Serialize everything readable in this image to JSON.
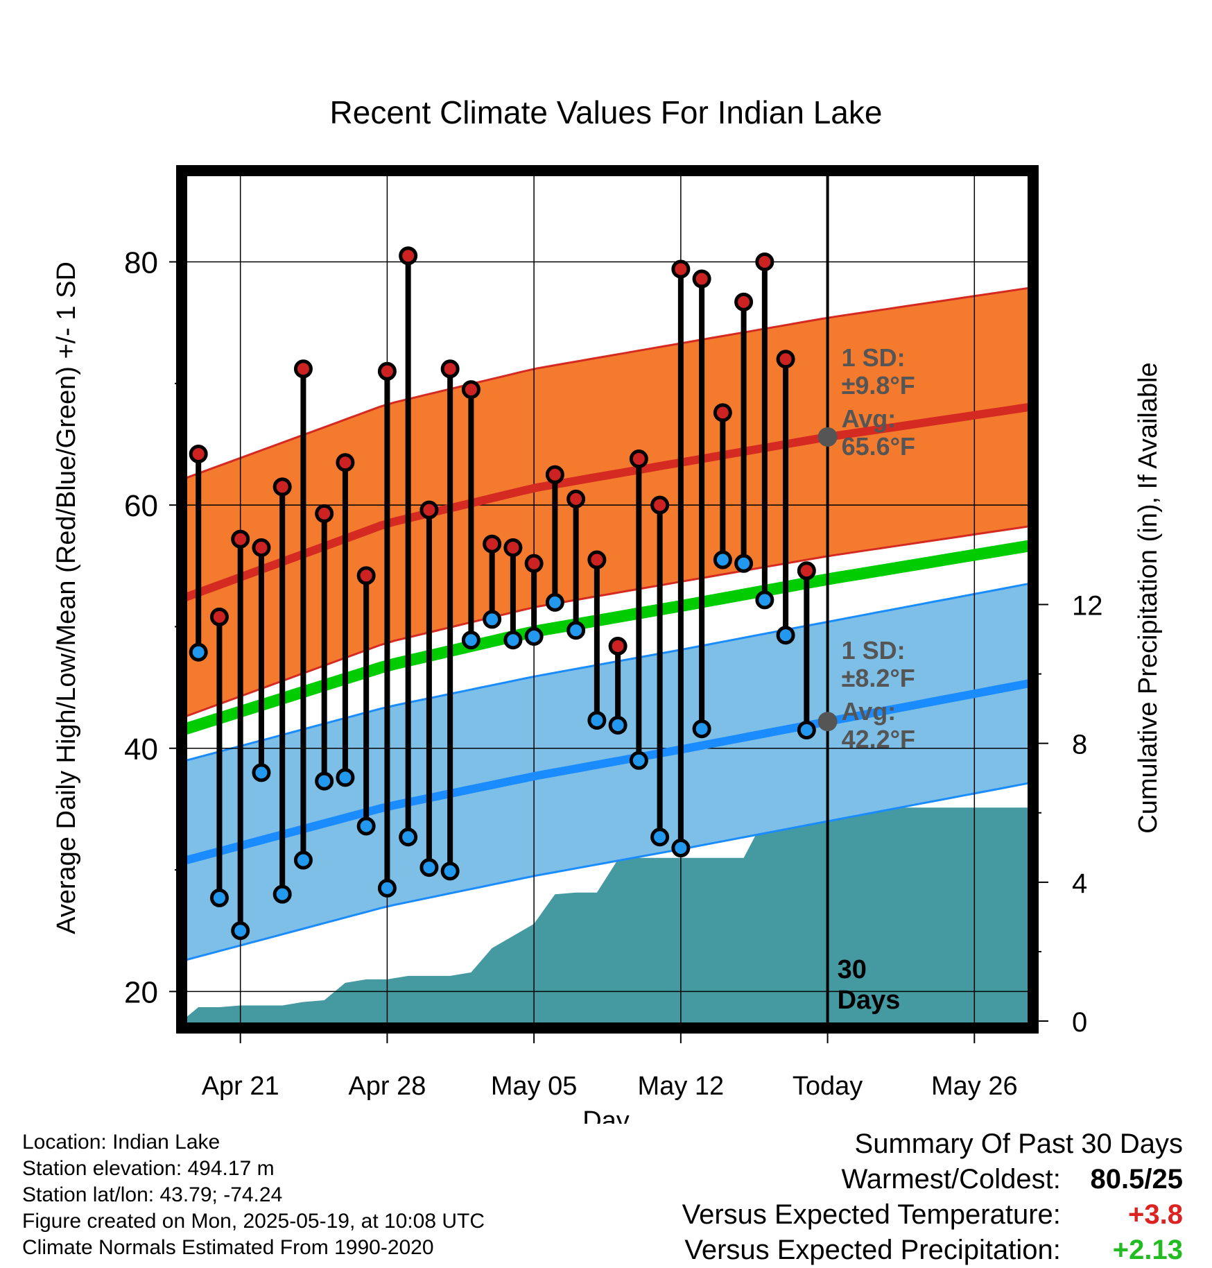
{
  "chart_data": {
    "type": "range-bar",
    "title": "Recent Climate Values For Indian Lake",
    "xlabel": "Day",
    "ylabel": "Average Daily High/Low/Mean (Red/Blue/Green) +/- 1 SD",
    "y2label": "Cumulative Precipitation (in), If Available",
    "ylim": [
      17,
      87.5
    ],
    "y2lim": [
      -0.2,
      24.5
    ],
    "y_ticks": [
      20,
      40,
      60,
      80
    ],
    "y2_ticks": [
      0,
      4,
      8,
      12
    ],
    "x_tick_labels": [
      "Apr 21",
      "Apr 28",
      "May 05",
      "May 12",
      "Today",
      "May 26"
    ],
    "x_tick_days": [
      0,
      7,
      14,
      21,
      28,
      35
    ],
    "xlim": [
      -2.8,
      37.8
    ],
    "today_day": 28,
    "today_label": [
      "30",
      "Days"
    ],
    "days": [
      -2,
      -1,
      0,
      1,
      2,
      3,
      4,
      5,
      6,
      7,
      8,
      9,
      10,
      11,
      12,
      13,
      14,
      15,
      16,
      17,
      18,
      19,
      20,
      21,
      22,
      23,
      24,
      25,
      26,
      27
    ],
    "highs": [
      64.2,
      50.8,
      57.2,
      56.5,
      61.5,
      71.2,
      59.3,
      63.5,
      54.2,
      71.0,
      80.5,
      59.6,
      71.2,
      69.5,
      56.8,
      56.5,
      55.2,
      62.5,
      60.5,
      55.5,
      48.4,
      63.8,
      60.0,
      79.4,
      78.6,
      67.6,
      76.7,
      80.0,
      72.0,
      54.6
    ],
    "lows": [
      47.9,
      27.7,
      25.0,
      38.0,
      28.0,
      30.8,
      37.3,
      37.6,
      33.6,
      28.5,
      32.7,
      30.2,
      29.9,
      48.9,
      50.6,
      48.9,
      49.2,
      52.0,
      49.7,
      42.3,
      41.9,
      39.0,
      32.7,
      31.8,
      41.6,
      55.5,
      55.2,
      52.2,
      49.3,
      41.5
    ],
    "normals": {
      "high_avg": [
        [
          -2.8,
          52.3
        ],
        [
          7,
          58.5
        ],
        [
          14,
          61.4
        ],
        [
          21,
          63.5
        ],
        [
          28,
          65.6
        ],
        [
          37.8,
          68.1
        ]
      ],
      "high_sd": 9.8,
      "low_avg": [
        [
          -2.8,
          30.7
        ],
        [
          7,
          35.2
        ],
        [
          14,
          37.7
        ],
        [
          21,
          39.9
        ],
        [
          28,
          42.2
        ],
        [
          37.8,
          45.4
        ]
      ],
      "low_sd": 8.2,
      "mean_avg": [
        [
          -2.8,
          41.5
        ],
        [
          7,
          46.8
        ],
        [
          14,
          49.6
        ],
        [
          21,
          51.7
        ],
        [
          28,
          53.9
        ],
        [
          37.8,
          56.7
        ]
      ]
    },
    "precip_cumulative": [
      [
        -2.8,
        0.0
      ],
      [
        -2,
        0.4
      ],
      [
        -1,
        0.4
      ],
      [
        0,
        0.45
      ],
      [
        1,
        0.45
      ],
      [
        2,
        0.45
      ],
      [
        3,
        0.55
      ],
      [
        4,
        0.6
      ],
      [
        5,
        1.1
      ],
      [
        6,
        1.2
      ],
      [
        7,
        1.2
      ],
      [
        8,
        1.3
      ],
      [
        9,
        1.3
      ],
      [
        10,
        1.3
      ],
      [
        11,
        1.4
      ],
      [
        12,
        2.1
      ],
      [
        13,
        2.45
      ],
      [
        14,
        2.8
      ],
      [
        15,
        3.65
      ],
      [
        16,
        3.7
      ],
      [
        17,
        3.7
      ],
      [
        18,
        4.65
      ],
      [
        19,
        4.7
      ],
      [
        20,
        4.7
      ],
      [
        21,
        4.7
      ],
      [
        22,
        4.7
      ],
      [
        23,
        4.7
      ],
      [
        24,
        4.7
      ],
      [
        25,
        5.85
      ],
      [
        26,
        6.15
      ],
      [
        27,
        6.15
      ],
      [
        28,
        6.15
      ],
      [
        37.8,
        6.15
      ]
    ],
    "annotations": {
      "high": {
        "line1": "1 SD:",
        "line2": "±9.8°F",
        "line3": "Avg:",
        "line4": "65.6°F"
      },
      "low": {
        "line1": "1 SD:",
        "line2": "±8.2°F",
        "line3": "Avg:",
        "line4": "42.2°F"
      }
    },
    "colors": {
      "high_band": "#f47a2e",
      "high_line": "#d42a22",
      "low_band": "#7dbfe6",
      "low_line": "#1a8cff",
      "mean_line": "#00cc00",
      "precip": "#4599a1",
      "high_dot": "#cc2222",
      "low_dot": "#2299ee",
      "annotation": "#555555"
    }
  },
  "footer": {
    "location": "Location: Indian Lake",
    "elevation": "Station elevation: 494.17 m",
    "latlon": "Station lat/lon: 43.79; -74.24",
    "created": "Figure created on Mon, 2025-05-19, at 10:08 UTC",
    "normals": "Climate Normals Estimated From 1990-2020"
  },
  "summary": {
    "title": "Summary Of Past 30 Days",
    "warmest_label": "Warmest/Coldest:",
    "warmest_value": "80.5/25",
    "temp_label": "Versus Expected Temperature:",
    "temp_value": "+3.8",
    "temp_color": "#dd2222",
    "precip_label": "Versus Expected Precipitation:",
    "precip_value": "+2.13",
    "precip_color": "#22bb22"
  }
}
